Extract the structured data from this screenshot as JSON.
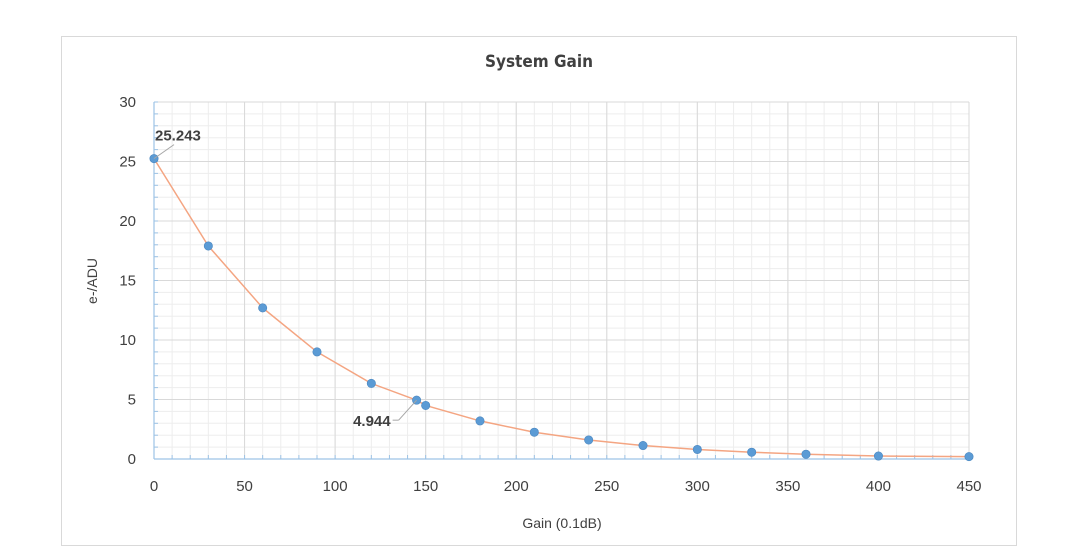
{
  "chart_data": {
    "type": "line",
    "title": "System Gain",
    "xlabel": "Gain (0.1dB)",
    "ylabel": "e-/ADU",
    "xlim": [
      0,
      450
    ],
    "ylim": [
      0,
      30
    ],
    "x_ticks": [
      0,
      50,
      100,
      150,
      200,
      250,
      300,
      350,
      400,
      450
    ],
    "y_ticks": [
      0,
      5,
      10,
      15,
      20,
      25,
      30
    ],
    "grid": true,
    "series": [
      {
        "x": [
          0,
          30,
          60,
          90,
          120,
          145,
          150,
          180,
          210,
          240,
          270,
          300,
          330,
          360,
          400,
          450
        ],
        "y": [
          25.243,
          17.9,
          12.7,
          9.0,
          6.35,
          4.944,
          4.5,
          3.2,
          2.25,
          1.6,
          1.13,
          0.8,
          0.57,
          0.4,
          0.25,
          0.2
        ],
        "line_color": "#f4a582",
        "marker_color": "#5b9bd5"
      }
    ],
    "annotations": [
      {
        "x": 0,
        "y": 25.243,
        "text": "25.243"
      },
      {
        "x": 145,
        "y": 4.944,
        "text": "4.944"
      }
    ]
  }
}
